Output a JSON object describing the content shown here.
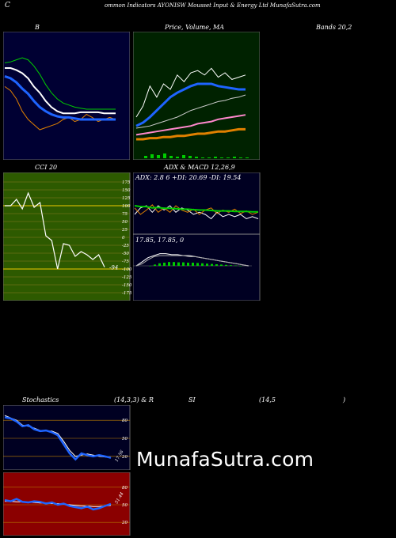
{
  "header": {
    "left_letter": "C",
    "title": "ommon Indicators AYONISW Mousset Input & Energy Ltd MunafaSutra.com"
  },
  "colors": {
    "background": "#000000",
    "bb_panel": "#000033",
    "price_panel": "#002200",
    "cci_panel": "#2d5a00",
    "adx_panel": "#000022",
    "rsi_panel": "#8b0000",
    "blue_line": "#1e64ff",
    "green_line": "#00cc00",
    "orange_line": "#e08000"
  },
  "labels": {
    "bb": "B",
    "bands": "Bands 20,2",
    "price": "Price, Volume, MA",
    "cci": "CCI 20",
    "adx": "ADX  & MACD 12,26,9",
    "adx_values": "ADX: 2.8           6  +DI: 20.69 -DI: 19.54",
    "macd_values": "17.85,  17.85,  0",
    "stoch": "Stochastics",
    "stoch_params": "(14,3,3) & R",
    "si": "SI",
    "rsi_params": "(14,5",
    "paren": ")",
    "cci_last": "-94",
    "stoch_last": "17.56",
    "rsi_last": "51.44",
    "watermark": "MunafaSutra.com"
  },
  "chart_data": [
    {
      "type": "line",
      "title": "Bollinger Bands 20,2",
      "series": [
        {
          "values": [
            62,
            58,
            50,
            38,
            30,
            25,
            20,
            22,
            24,
            26,
            30,
            32,
            28,
            30,
            35,
            32,
            28,
            30,
            32,
            30
          ]
        },
        {
          "values": [
            72,
            70,
            66,
            60,
            55,
            48,
            42,
            38,
            35,
            33,
            32,
            32,
            31,
            30,
            30,
            30,
            30,
            30,
            30,
            30
          ]
        },
        {
          "values": [
            80,
            80,
            78,
            75,
            70,
            62,
            56,
            48,
            42,
            38,
            36,
            36,
            36,
            37,
            37,
            37,
            37,
            36,
            36,
            36
          ]
        },
        {
          "values": [
            85,
            86,
            88,
            90,
            88,
            82,
            74,
            64,
            56,
            50,
            46,
            44,
            42,
            41,
            40,
            40,
            40,
            40,
            40,
            40
          ]
        }
      ],
      "ylim": [
        0,
        100
      ]
    },
    {
      "type": "line",
      "title": "Price, Volume, MA",
      "series": [
        {
          "values": [
            30,
            40,
            58,
            48,
            60,
            55,
            68,
            62,
            70,
            72,
            68,
            74,
            66,
            70,
            64,
            66,
            68
          ]
        },
        {
          "values": [
            22,
            25,
            30,
            36,
            42,
            48,
            52,
            55,
            58,
            60,
            60,
            60,
            58,
            57,
            56,
            55,
            55
          ]
        },
        {
          "values": [
            20,
            21,
            22,
            24,
            26,
            28,
            30,
            33,
            36,
            38,
            40,
            42,
            44,
            45,
            47,
            48,
            50
          ]
        },
        {
          "values": [
            14,
            15,
            16,
            17,
            18,
            19,
            20,
            21,
            22,
            24,
            25,
            26,
            28,
            29,
            30,
            31,
            32
          ]
        },
        {
          "values": [
            10,
            10,
            11,
            11,
            12,
            12,
            13,
            13,
            14,
            15,
            15,
            16,
            17,
            17,
            18,
            19,
            19
          ]
        }
      ],
      "volume": [
        3,
        5,
        4,
        6,
        3,
        2,
        4,
        3,
        2,
        1,
        1,
        2,
        1,
        1,
        2,
        1,
        1
      ],
      "ylim": [
        0,
        100
      ]
    },
    {
      "type": "line",
      "title": "CCI 20",
      "ticks": [
        175,
        150,
        125,
        100,
        75,
        50,
        25,
        0,
        -25,
        -50,
        -75,
        -100,
        -125,
        -150,
        -175
      ],
      "series": [
        {
          "values": [
            100,
            100,
            120,
            90,
            140,
            95,
            110,
            5,
            -10,
            -100,
            -20,
            -25,
            -60,
            -45,
            -55,
            -70,
            -55,
            -94
          ]
        }
      ],
      "ylim": [
        -175,
        175
      ]
    },
    {
      "type": "line",
      "title": "ADX & MACD 12,26,9",
      "series": [
        {
          "values": [
            40,
            55,
            60,
            45,
            60,
            50,
            60,
            45,
            55,
            50,
            40,
            45,
            40,
            30,
            45,
            35,
            40,
            35,
            40,
            30,
            35,
            30
          ]
        },
        {
          "values": [
            55,
            40,
            50,
            62,
            45,
            55,
            45,
            60,
            50,
            45,
            52,
            40,
            50,
            55,
            42,
            50,
            45,
            52,
            42,
            48,
            40,
            45
          ]
        },
        {
          "values": [
            60,
            58,
            58,
            55,
            56,
            54,
            54,
            53,
            52,
            52,
            51,
            50,
            50,
            49,
            48,
            48,
            48,
            47,
            47,
            47,
            46,
            46
          ]
        }
      ],
      "macd": [
        0,
        4,
        8,
        10,
        12,
        12,
        11,
        11,
        10,
        10,
        9,
        8,
        7,
        6,
        5,
        4,
        3,
        2,
        1,
        0
      ],
      "signal": [
        0,
        2,
        6,
        9,
        10,
        10,
        10,
        10,
        10,
        9,
        9,
        8,
        7,
        6,
        5,
        4,
        3,
        2,
        1,
        0
      ]
    },
    {
      "type": "line",
      "title": "Stochastics (14,3,3)",
      "ticks": [
        80,
        50,
        20
      ],
      "series": [
        {
          "values": [
            85,
            83,
            78,
            70,
            72,
            65,
            62,
            63,
            60,
            55,
            40,
            25,
            15,
            25,
            22,
            20,
            22,
            20,
            17.56
          ]
        },
        {
          "values": [
            88,
            84,
            80,
            72,
            70,
            67,
            63,
            62,
            62,
            58,
            45,
            30,
            20,
            22,
            24,
            22,
            20,
            19,
            18
          ]
        }
      ],
      "ylim": [
        0,
        100
      ]
    },
    {
      "type": "line",
      "title": "RSI (14,5)",
      "ticks": [
        80,
        50,
        20
      ],
      "series": [
        {
          "values": [
            58,
            56,
            60,
            55,
            54,
            56,
            55,
            52,
            54,
            50,
            52,
            48,
            46,
            44,
            47,
            42,
            44,
            48,
            51.44
          ]
        },
        {
          "values": [
            56,
            56,
            55,
            55,
            54,
            54,
            53,
            53,
            52,
            52,
            51,
            50,
            49,
            48,
            48,
            47,
            47,
            48,
            49
          ]
        }
      ],
      "ylim": [
        0,
        100
      ]
    }
  ]
}
